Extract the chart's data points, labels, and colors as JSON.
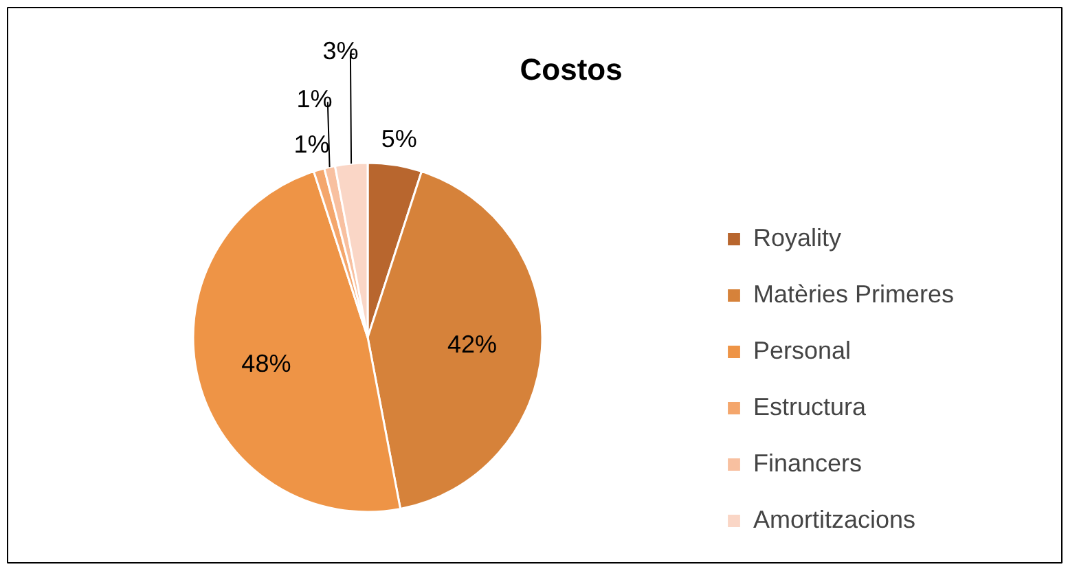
{
  "chart_data": {
    "type": "pie",
    "title": "Costos",
    "categories": [
      "Royality",
      "Matèries Primeres",
      "Personal",
      "Estructura",
      "Financers",
      "Amortitzacions"
    ],
    "values": [
      5,
      42,
      48,
      1,
      1,
      3
    ],
    "colors": [
      "#b8662e",
      "#d6823a",
      "#ee9446",
      "#f4a66c",
      "#f8c0a0",
      "#fad6c6"
    ],
    "value_labels": [
      "5%",
      "42%",
      "48%",
      "1%",
      "1%",
      "3%"
    ],
    "legend": "right"
  }
}
